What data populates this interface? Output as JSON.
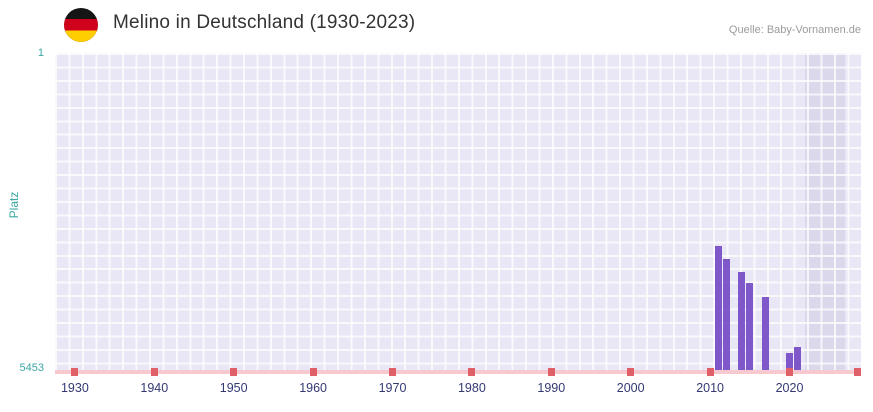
{
  "header": {
    "title": "Melino in Deutschland (1930-2023)",
    "source": "Quelle: Baby-Vornamen.de",
    "flag_icon": "german-flag-icon",
    "flag_colors": [
      "#151515",
      "#d0021b",
      "#ffce00"
    ]
  },
  "chart_data": {
    "type": "bar",
    "title": "Melino in Deutschland (1930-2023)",
    "xlabel": "",
    "ylabel": "Platz",
    "y_axis": {
      "top_tick_label": "1",
      "bottom_tick_label": "5453",
      "min": 1,
      "max": 5453,
      "inverted": true
    },
    "x_axis": {
      "min": 1927.5,
      "max": 2029,
      "tick_labels": [
        "1930",
        "1940",
        "1950",
        "1960",
        "1970",
        "1980",
        "1990",
        "2000",
        "2010",
        "2020"
      ],
      "tick_mark_years": [
        1930,
        1940,
        1950,
        1960,
        1970,
        1980,
        1990,
        2000,
        2010,
        2020,
        2029
      ]
    },
    "series": [
      {
        "name": "Platz",
        "points": [
          {
            "year": 2011,
            "rank": 3320
          },
          {
            "year": 2012,
            "rank": 3550
          },
          {
            "year": 2014,
            "rank": 3770
          },
          {
            "year": 2015,
            "rank": 3960
          },
          {
            "year": 2017,
            "rank": 4200
          },
          {
            "year": 2020,
            "rank": 5160
          },
          {
            "year": 2021,
            "rank": 5060
          }
        ]
      }
    ],
    "highlight_band": {
      "from": 2022,
      "to": 2027
    },
    "grid": true,
    "legend": false,
    "colors": {
      "bar": "#7e57c8",
      "plot-bg": "#e9e7f5",
      "band-bg": "#dcd8ec",
      "grid-line": "rgba(255,255,255,0.75)",
      "y-axis-text": "#3aa7a3",
      "x-axis-text": "#333a73",
      "axis-line": "#f6c9cf",
      "tick-mark": "#e0606a",
      "title-text": "#333333",
      "source-text": "#9b9b9b"
    }
  }
}
